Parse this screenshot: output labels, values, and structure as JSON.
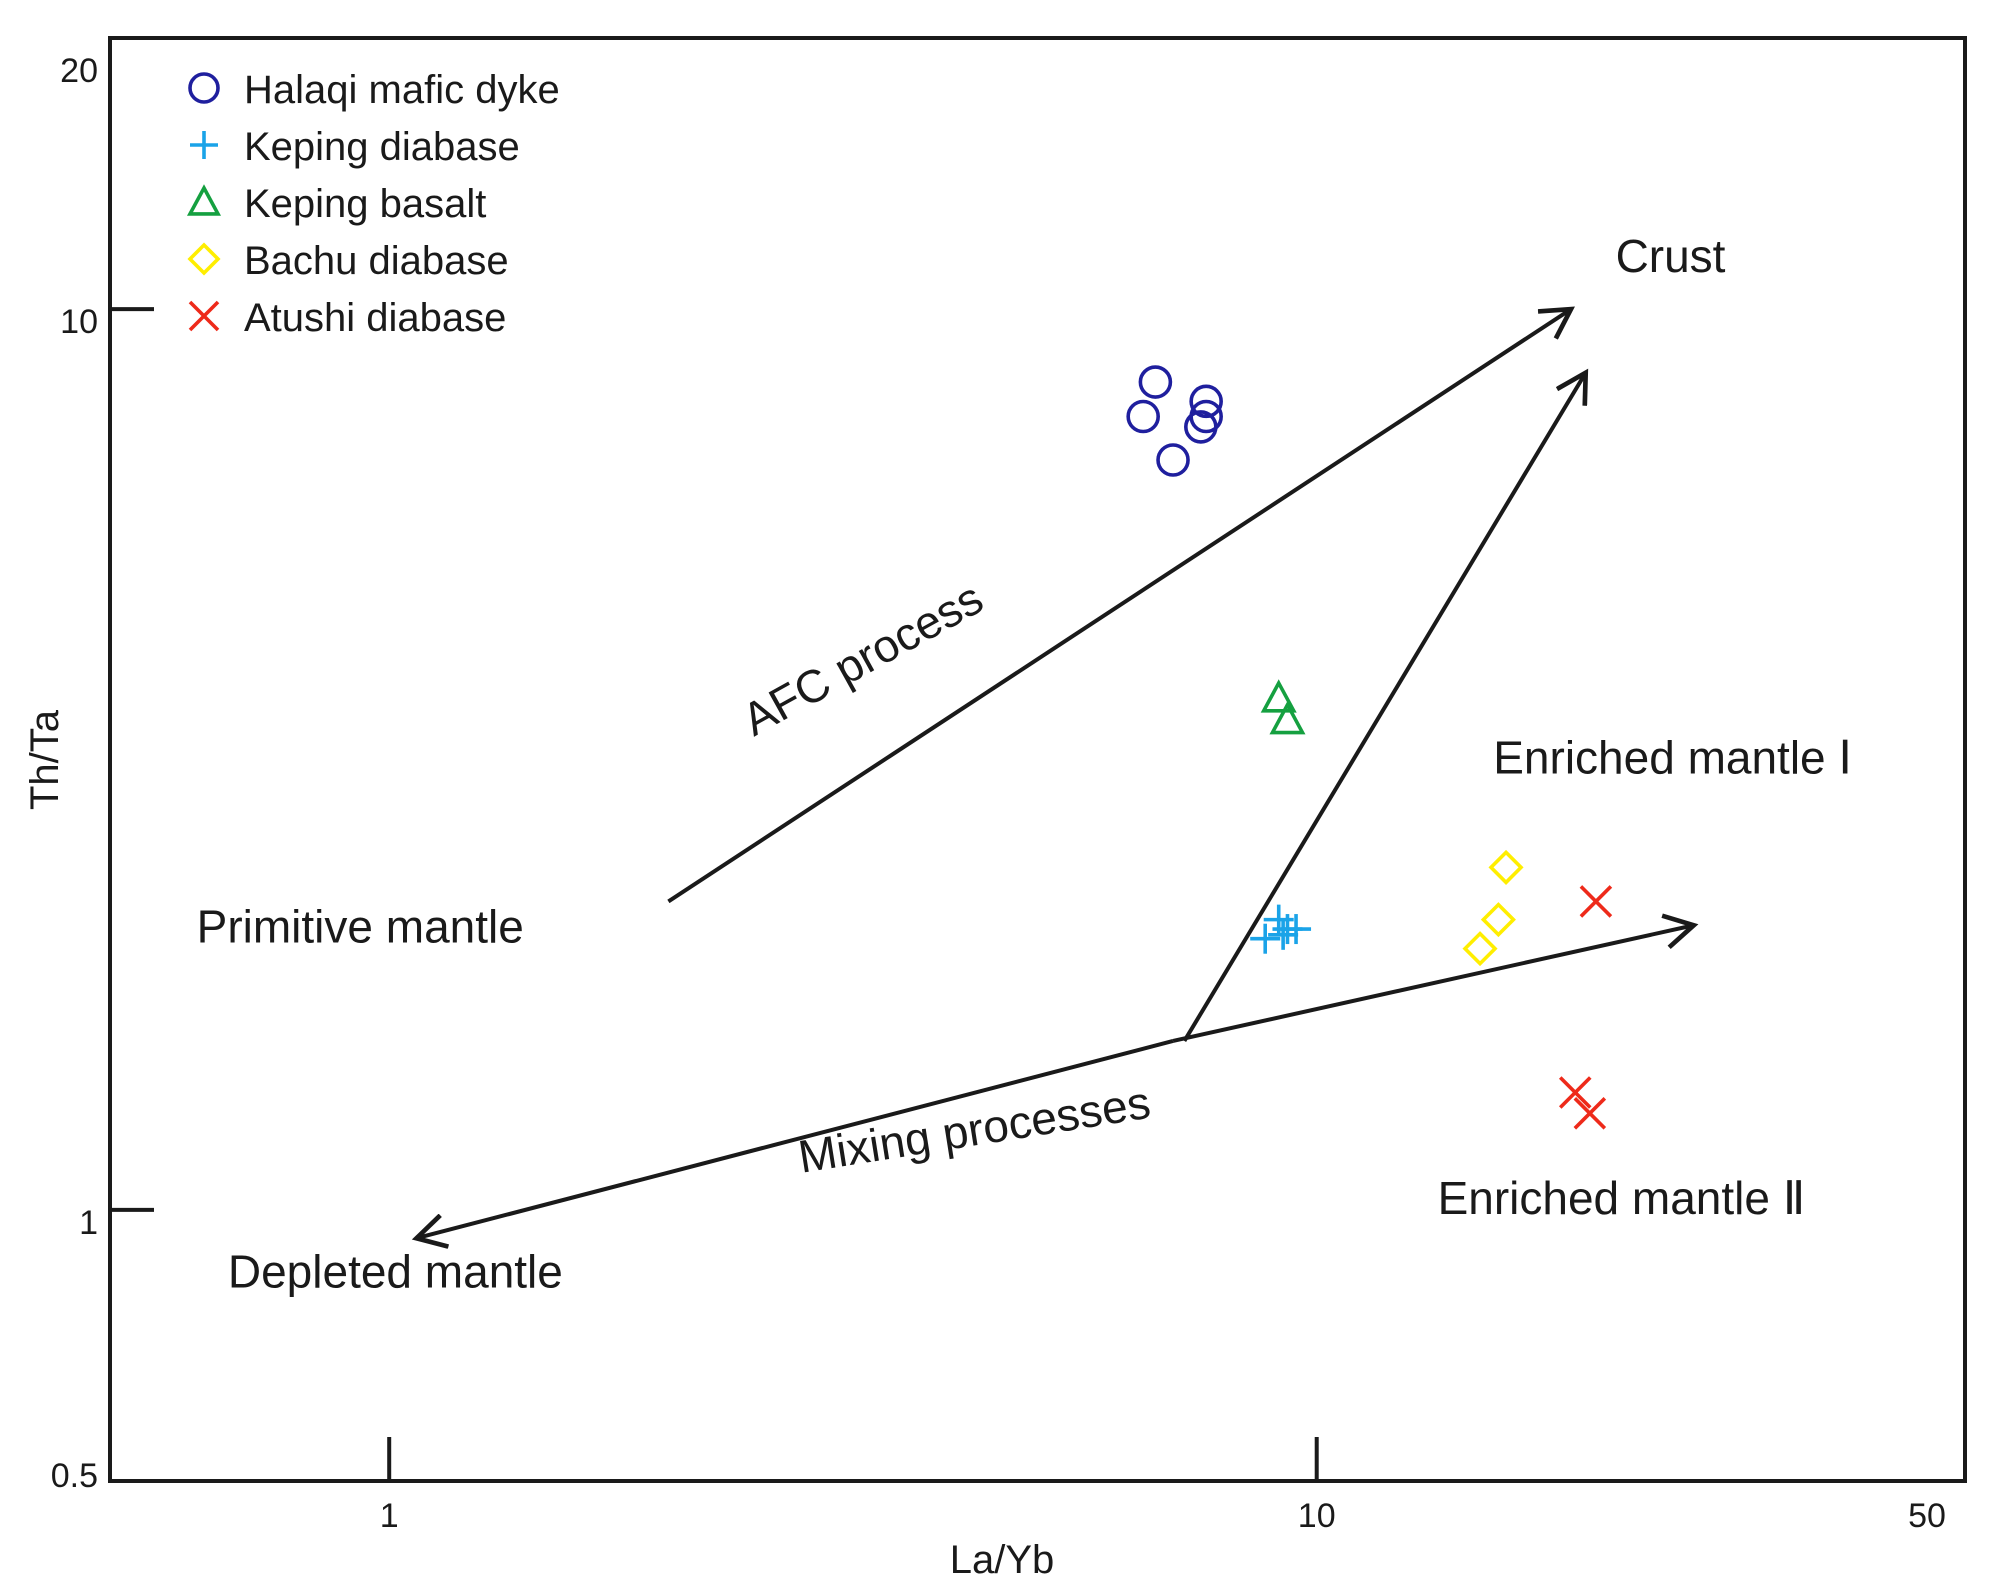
{
  "chart_data": {
    "type": "scatter",
    "title": "",
    "xlabel": "La/Yb",
    "ylabel": "Th/Ta",
    "x_scale": "log",
    "y_scale": "log",
    "xlim": [
      0.5,
      50
    ],
    "ylim": [
      0.5,
      20
    ],
    "x_ticks": [
      {
        "value": 1,
        "label": "1"
      },
      {
        "value": 10,
        "label": "10"
      },
      {
        "value": 50,
        "label": "50"
      }
    ],
    "y_ticks": [
      {
        "value": 0.5,
        "label": "0.5"
      },
      {
        "value": 1,
        "label": "1"
      },
      {
        "value": 10,
        "label": "10"
      },
      {
        "value": 20,
        "label": "20"
      }
    ],
    "legend_position": "top-left",
    "series": [
      {
        "name": "Halaqi mafic dyke",
        "marker": "circle",
        "color": "#1f1f9e",
        "points": [
          [
            6.7,
            8.3
          ],
          [
            6.5,
            7.6
          ],
          [
            7.0,
            6.8
          ],
          [
            7.6,
            7.9
          ],
          [
            7.6,
            7.6
          ],
          [
            7.5,
            7.4
          ]
        ]
      },
      {
        "name": "Keping diabase",
        "marker": "plus",
        "color": "#1aa3e8",
        "points": [
          [
            8.8,
            2.0
          ],
          [
            9.1,
            2.1
          ],
          [
            9.3,
            2.05
          ],
          [
            9.5,
            2.05
          ],
          [
            9.2,
            2.02
          ]
        ]
      },
      {
        "name": "Keping basalt",
        "marker": "triangle",
        "color": "#15a040",
        "points": [
          [
            9.1,
            3.7
          ],
          [
            9.3,
            3.5
          ]
        ]
      },
      {
        "name": "Bachu diabase",
        "marker": "diamond",
        "color": "#ffee00",
        "points": [
          [
            16.0,
            2.4
          ],
          [
            15.7,
            2.1
          ],
          [
            15.0,
            1.95
          ]
        ]
      },
      {
        "name": "Atushi diabase",
        "marker": "cross",
        "color": "#ee2a1a",
        "points": [
          [
            20.0,
            2.2
          ],
          [
            19.0,
            1.35
          ],
          [
            19.7,
            1.28
          ]
        ]
      }
    ],
    "annotations": [
      {
        "id": "crust",
        "text": "Crust",
        "x": 21.0,
        "y": 11.0
      },
      {
        "id": "enriched-mantle-1",
        "text": "Enriched mantle Ⅰ",
        "x": 15.5,
        "y": 3.05
      },
      {
        "id": "enriched-mantle-2",
        "text": "Enriched mantle Ⅱ",
        "x": 13.5,
        "y": 0.99
      },
      {
        "id": "primitive-mantle",
        "text": "Primitive mantle",
        "x": 0.62,
        "y": 1.98
      },
      {
        "id": "depleted-mantle",
        "text": "Depleted mantle",
        "x": 0.67,
        "y": 0.82
      },
      {
        "id": "afc-process",
        "text": "AFC process",
        "x": 3.3,
        "y": 3.95
      },
      {
        "id": "mixing-processes",
        "text": "Mixing processes",
        "x": 4.3,
        "y": 1.18
      }
    ],
    "arrows": [
      {
        "id": "afc-arrow",
        "from": [
          2.0,
          2.2
        ],
        "to": [
          18.8,
          10.0
        ]
      },
      {
        "id": "crust-mixing-arrow",
        "from": [
          7.2,
          1.54
        ],
        "to": [
          19.5,
          8.5
        ]
      },
      {
        "id": "mixing-arrow-right",
        "from": [
          7.0,
          1.54
        ],
        "to": [
          25.5,
          2.07
        ]
      },
      {
        "id": "mixing-arrow-left",
        "from": [
          7.0,
          1.54
        ],
        "to": [
          1.07,
          0.93
        ]
      }
    ]
  }
}
